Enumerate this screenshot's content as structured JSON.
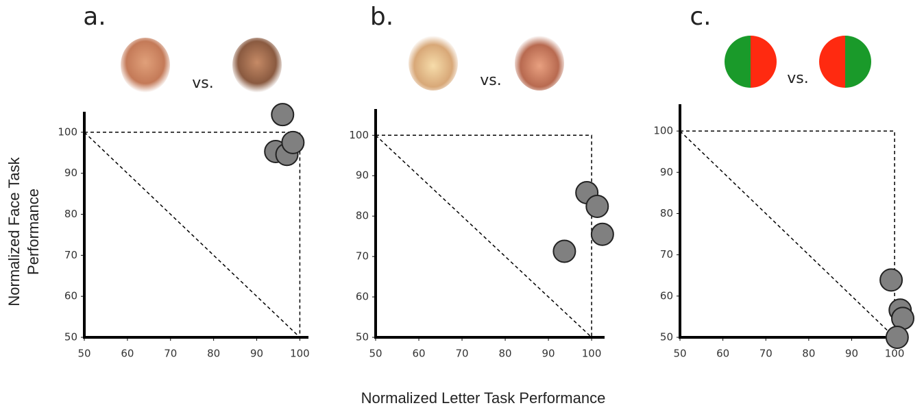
{
  "xlabel": "Normalized Letter Task Performance",
  "ylabel": "Normalized Face Task Performance",
  "chart_data": [
    {
      "type": "scatter",
      "title": "a.",
      "annotation": "vs.",
      "x": [
        96.0,
        94.4,
        97.0,
        98.4
      ],
      "values": [
        104.3,
        95.3,
        94.6,
        97.5
      ],
      "color": "#808080",
      "xlim": [
        50,
        102
      ],
      "ylim": [
        50,
        105
      ],
      "xticks": [
        50,
        60,
        70,
        80,
        90,
        100
      ],
      "yticks": [
        50,
        60,
        70,
        80,
        90,
        100
      ]
    },
    {
      "type": "scatter",
      "title": "b.",
      "annotation": "vs.",
      "x": [
        98.9,
        101.3,
        102.5,
        93.7
      ],
      "values": [
        85.8,
        82.4,
        75.5,
        71.3
      ],
      "color": "#808080",
      "xlim": [
        50,
        103
      ],
      "ylim": [
        50,
        106.5
      ],
      "xticks": [
        50,
        60,
        70,
        80,
        90,
        100
      ],
      "yticks": [
        50,
        60,
        70,
        80,
        90,
        100
      ]
    },
    {
      "type": "scatter",
      "title": "c.",
      "annotation": "vs.",
      "x": [
        99.2,
        101.3,
        101.9,
        100.6
      ],
      "values": [
        63.9,
        56.6,
        54.6,
        50
      ],
      "color": "#808080",
      "xlim": [
        50,
        102.7
      ],
      "ylim": [
        50,
        106.5
      ],
      "xticks": [
        50,
        60,
        70,
        80,
        90,
        100
      ],
      "yticks": [
        50,
        60,
        70,
        80,
        90,
        100
      ]
    }
  ]
}
